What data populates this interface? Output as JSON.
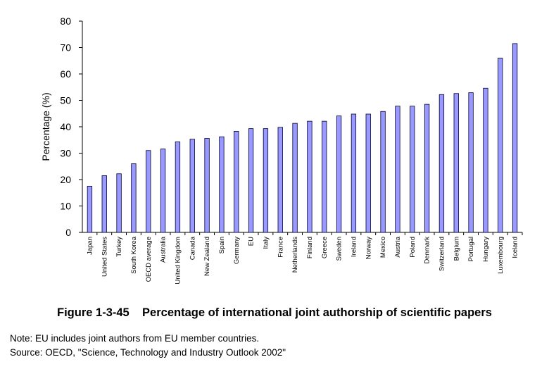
{
  "chart_data": {
    "type": "bar",
    "title": "",
    "xlabel": "",
    "ylabel": "Percentage (%)",
    "ylim": [
      0,
      80
    ],
    "yticks": [
      0,
      10,
      20,
      30,
      40,
      50,
      60,
      70,
      80
    ],
    "grid": false,
    "legend": "none",
    "bar_color": "#9999ff",
    "bar_stroke": "#000033",
    "categories": [
      "Japan",
      "United States",
      "Turkey",
      "South Korea",
      "OECD average",
      "Australia",
      "United Kingdom",
      "Canada",
      "New Zealand",
      "Spain",
      "Germany",
      "EU",
      "Italy",
      "France",
      "Netherlands",
      "Finland",
      "Greece",
      "Sweden",
      "Ireland",
      "Norway",
      "Mexico",
      "Austria",
      "Poland",
      "Denmark",
      "Switzerland",
      "Belgium",
      "Portugal",
      "Hungary",
      "Luxembourg",
      "Iceland"
    ],
    "values": [
      17.5,
      21.5,
      22.2,
      26,
      31,
      31.6,
      34.3,
      35.3,
      35.6,
      36.2,
      38.3,
      39.3,
      39.3,
      39.8,
      41.3,
      42.1,
      42.1,
      44.1,
      44.8,
      44.8,
      45.8,
      47.8,
      47.8,
      48.5,
      52.2,
      52.6,
      52.9,
      54.6,
      66,
      71.5
    ]
  },
  "caption": "Figure 1-3-45    Percentage of international joint authorship of scientific papers",
  "note": "Note: EU includes joint authors from EU member countries.",
  "source": "Source: OECD, \"Science, Technology and Industry Outlook 2002\""
}
